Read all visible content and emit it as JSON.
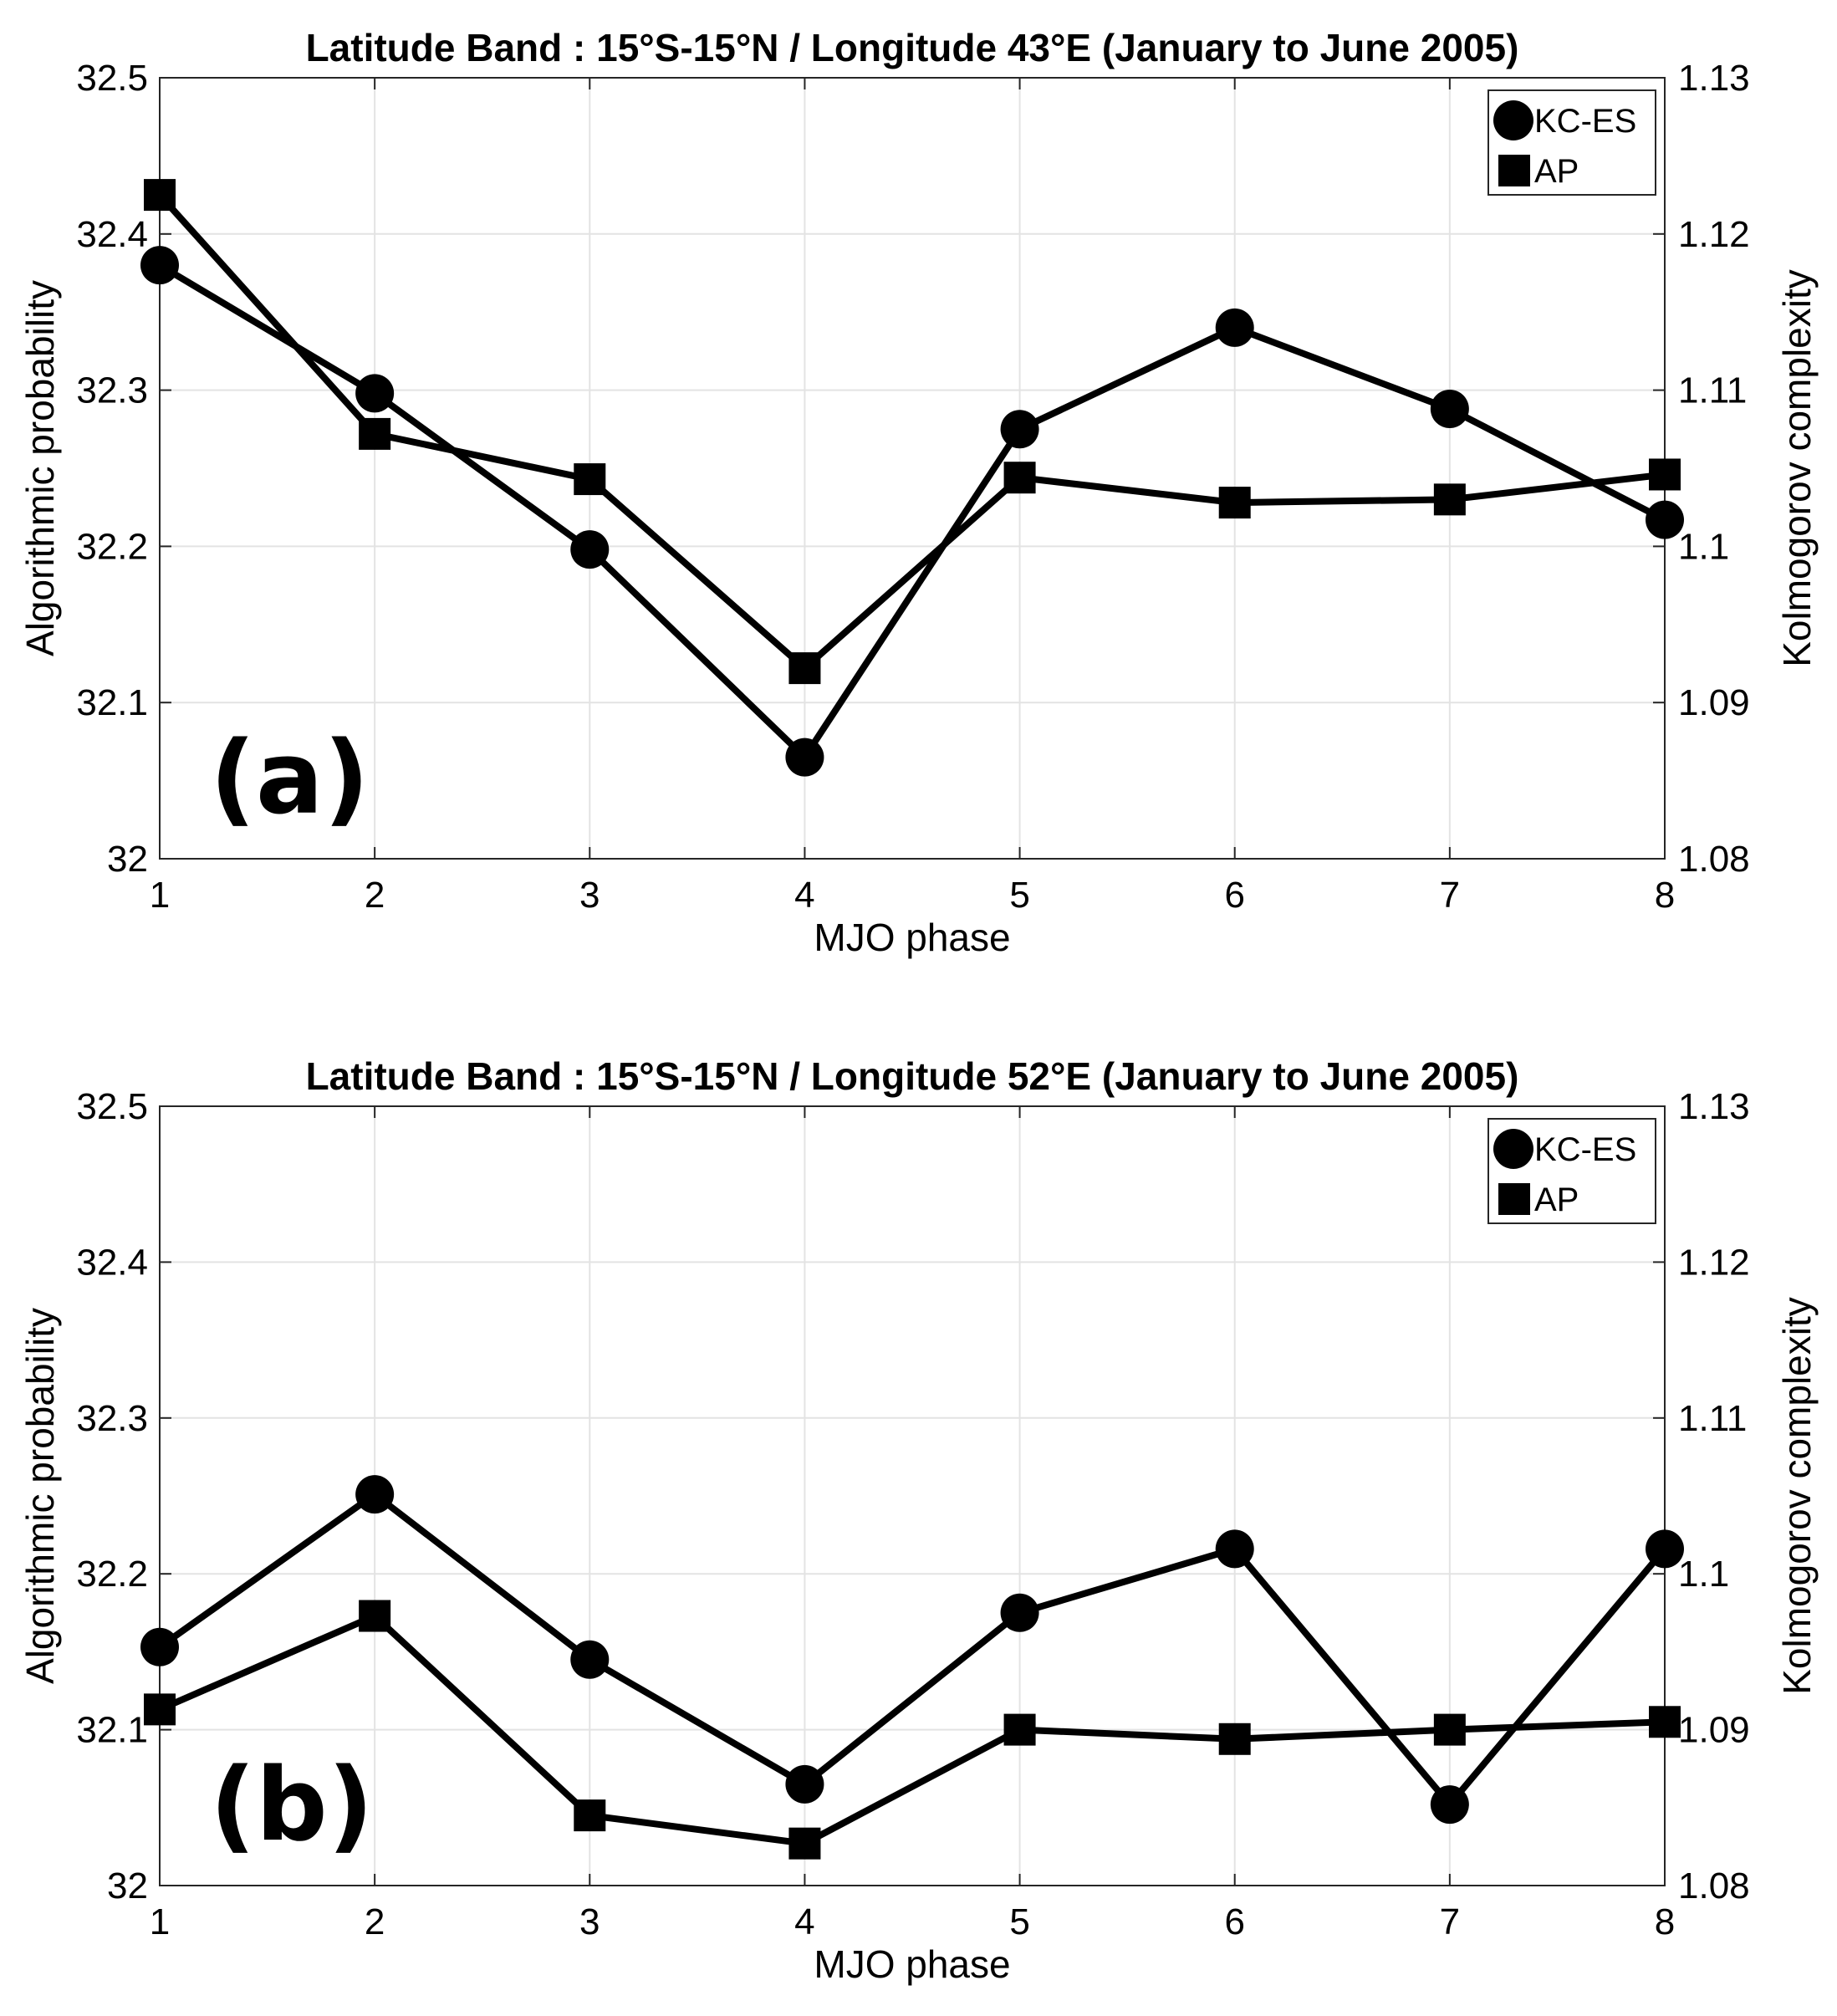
{
  "chart_data": [
    {
      "type": "line",
      "panel_label": "(a)",
      "title": "Latitude Band : 15°S-15°N / Longitude 43°E (January to June 2005)",
      "xlabel": "MJO phase",
      "ylabel_left": "Algorithmic probability",
      "ylabel_right": "Kolmogorov complexity",
      "x": [
        1,
        2,
        3,
        4,
        5,
        6,
        7,
        8
      ],
      "xlim": [
        1,
        8
      ],
      "ylim_left": [
        32,
        32.5
      ],
      "ylim_right": [
        1.08,
        1.13
      ],
      "yticks_left": [
        "32",
        "32.1",
        "32.2",
        "32.3",
        "32.4",
        "32.5"
      ],
      "yticks_right": [
        "1.08",
        "1.09",
        "1.1",
        "1.11",
        "1.12",
        "1.13"
      ],
      "grid": true,
      "legend_position": "top-right",
      "series": [
        {
          "name": "KC-ES",
          "marker": "circle",
          "axis": "right",
          "values": [
            1.118,
            1.1098,
            1.0998,
            1.0865,
            1.1075,
            1.114,
            1.1088,
            1.1017
          ]
        },
        {
          "name": "AP",
          "marker": "square",
          "axis": "left",
          "values": [
            32.425,
            32.272,
            32.243,
            32.122,
            32.244,
            32.228,
            32.23,
            32.246
          ]
        }
      ]
    },
    {
      "type": "line",
      "panel_label": "(b)",
      "title": "Latitude Band : 15°S-15°N / Longitude 52°E (January to June 2005)",
      "xlabel": "MJO phase",
      "ylabel_left": "Algorithmic probability",
      "ylabel_right": "Kolmogorov complexity",
      "x": [
        1,
        2,
        3,
        4,
        5,
        6,
        7,
        8
      ],
      "xlim": [
        1,
        8
      ],
      "ylim_left": [
        32,
        32.5
      ],
      "ylim_right": [
        1.08,
        1.13
      ],
      "yticks_left": [
        "32",
        "32.1",
        "32.2",
        "32.3",
        "32.4",
        "32.5"
      ],
      "yticks_right": [
        "1.08",
        "1.09",
        "1.1",
        "1.11",
        "1.12",
        "1.13"
      ],
      "grid": true,
      "legend_position": "top-right",
      "series": [
        {
          "name": "KC-ES",
          "marker": "circle",
          "axis": "right",
          "values": [
            1.0953,
            1.1051,
            1.0945,
            1.0865,
            1.0975,
            1.1016,
            1.0852,
            1.1016
          ]
        },
        {
          "name": "AP",
          "marker": "square",
          "axis": "left",
          "values": [
            32.113,
            32.173,
            32.045,
            32.027,
            32.1,
            32.094,
            32.1,
            32.105
          ]
        }
      ]
    }
  ]
}
